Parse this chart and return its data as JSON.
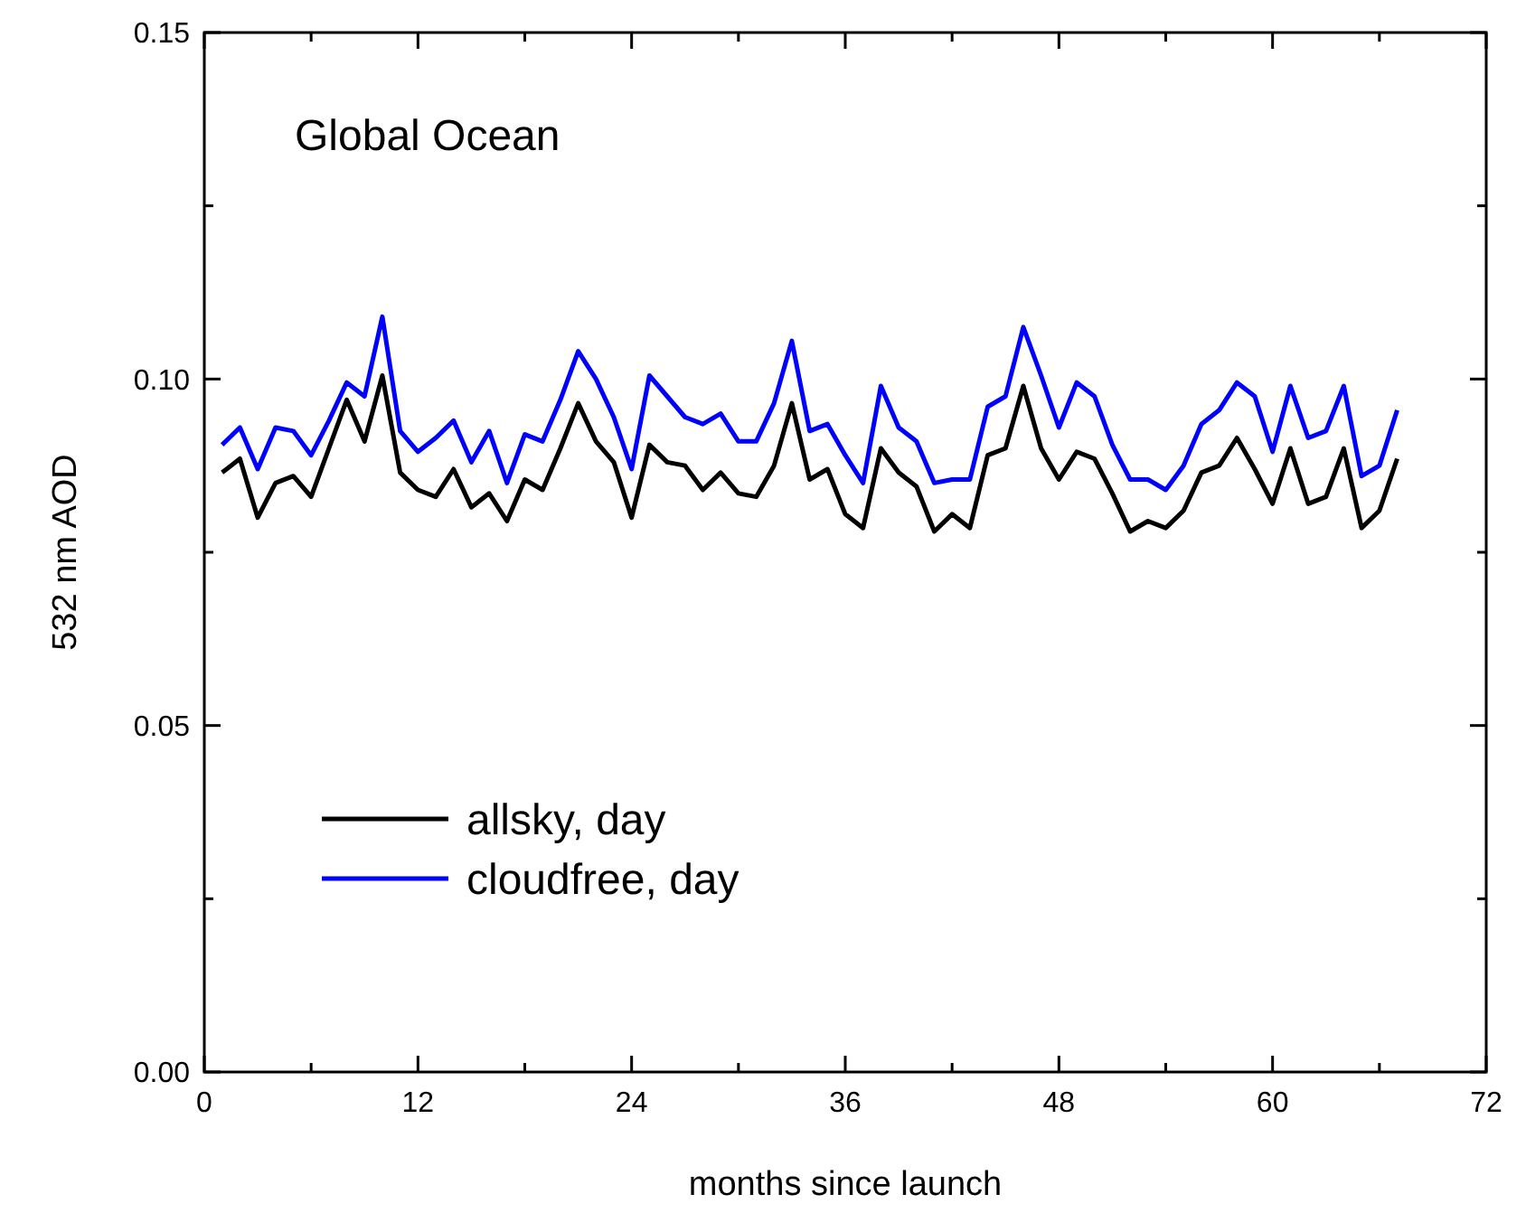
{
  "chart_data": {
    "type": "line",
    "title": "Global Ocean",
    "xlabel": "months since launch",
    "ylabel": "532 nm AOD",
    "x": [
      1,
      2,
      3,
      4,
      5,
      6,
      7,
      8,
      9,
      10,
      11,
      12,
      13,
      14,
      15,
      16,
      17,
      18,
      19,
      20,
      21,
      22,
      23,
      24,
      25,
      26,
      27,
      28,
      29,
      30,
      31,
      32,
      33,
      34,
      35,
      36,
      37,
      38,
      39,
      40,
      41,
      42,
      43,
      44,
      45,
      46,
      47,
      48,
      49,
      50,
      51,
      52,
      53,
      54,
      55,
      56,
      57,
      58,
      59,
      60,
      61,
      62,
      63,
      64,
      65,
      66,
      67
    ],
    "series": [
      {
        "name": "allsky, day",
        "color": "#000000",
        "values": [
          0.0865,
          0.0885,
          0.08,
          0.085,
          0.086,
          0.083,
          0.09,
          0.097,
          0.091,
          0.1005,
          0.0865,
          0.084,
          0.083,
          0.087,
          0.0815,
          0.0835,
          0.0795,
          0.0855,
          0.084,
          0.09,
          0.0965,
          0.091,
          0.088,
          0.08,
          0.0905,
          0.088,
          0.0875,
          0.084,
          0.0865,
          0.0835,
          0.083,
          0.0875,
          0.0965,
          0.0855,
          0.087,
          0.0805,
          0.0785,
          0.09,
          0.0865,
          0.0845,
          0.078,
          0.0805,
          0.0785,
          0.089,
          0.09,
          0.099,
          0.09,
          0.0855,
          0.0895,
          0.0885,
          0.0835,
          0.078,
          0.0795,
          0.0785,
          0.081,
          0.0865,
          0.0875,
          0.0915,
          0.087,
          0.082,
          0.09,
          0.082,
          0.083,
          0.09,
          0.0785,
          0.081,
          0.0885
        ]
      },
      {
        "name": "cloudfree, day",
        "color": "#0000ff",
        "values": [
          0.0905,
          0.093,
          0.087,
          0.093,
          0.0925,
          0.089,
          0.094,
          0.0995,
          0.0975,
          0.109,
          0.0925,
          0.0895,
          0.0915,
          0.094,
          0.088,
          0.0925,
          0.085,
          0.092,
          0.091,
          0.097,
          0.104,
          0.1,
          0.0945,
          0.087,
          0.1005,
          0.0975,
          0.0945,
          0.0935,
          0.095,
          0.091,
          0.091,
          0.0965,
          0.1055,
          0.0925,
          0.0935,
          0.089,
          0.085,
          0.099,
          0.093,
          0.091,
          0.085,
          0.0855,
          0.0855,
          0.096,
          0.0975,
          0.1075,
          0.1005,
          0.093,
          0.0995,
          0.0975,
          0.0905,
          0.0855,
          0.0855,
          0.084,
          0.0875,
          0.0935,
          0.0955,
          0.0995,
          0.0975,
          0.0895,
          0.099,
          0.0915,
          0.0925,
          0.099,
          0.086,
          0.0875,
          0.0955
        ]
      }
    ],
    "xlim": [
      0,
      72
    ],
    "xticks": [
      0,
      {
        "value": 6,
        "label": null
      },
      12,
      {
        "value": 18,
        "label": null
      },
      24,
      {
        "value": 30,
        "label": null
      },
      36,
      {
        "value": 42,
        "label": null
      },
      48,
      {
        "value": 54,
        "label": null
      },
      60,
      {
        "value": 66,
        "label": null
      },
      72
    ],
    "ylim": [
      0,
      0.15
    ],
    "yticks": [
      {
        "value": 0,
        "label": "0.00"
      },
      {
        "value": 0.025,
        "label": null
      },
      0.05,
      {
        "value": 0.075,
        "label": null
      },
      {
        "value": 0.1,
        "label": "0.10"
      },
      {
        "value": 0.125,
        "label": null
      },
      0.15
    ],
    "legend": "bottom left",
    "grid": false,
    "marker": "none",
    "line_style": "solid"
  }
}
